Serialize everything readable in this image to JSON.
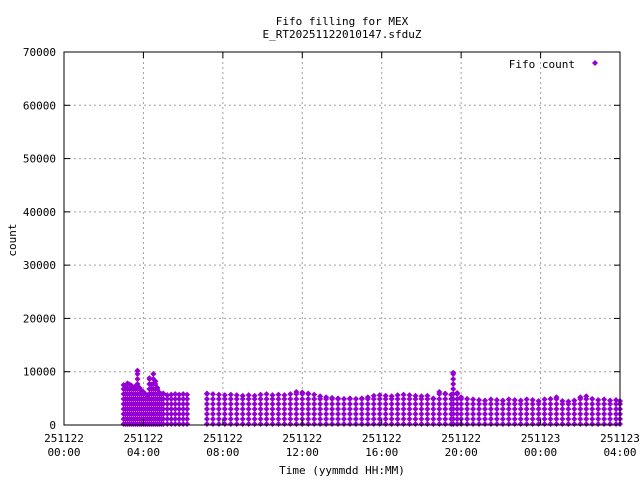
{
  "chart_data": {
    "type": "scatter",
    "title": "Fifo filling for MEX",
    "subtitle": "E_RT20251122010147.sfduZ",
    "xlabel": "Time (yymmdd HH:MM)",
    "ylabel": "count",
    "x_unit": "hours since 251122 00:00",
    "xlim": [
      0,
      28
    ],
    "ylim": [
      0,
      70000
    ],
    "y_ticks": [
      "0",
      "10000",
      "20000",
      "30000",
      "40000",
      "50000",
      "60000",
      "70000"
    ],
    "x_ticks": [
      {
        "date": "251122",
        "time": "00:00"
      },
      {
        "date": "251122",
        "time": "04:00"
      },
      {
        "date": "251122",
        "time": "08:00"
      },
      {
        "date": "251122",
        "time": "12:00"
      },
      {
        "date": "251122",
        "time": "16:00"
      },
      {
        "date": "251122",
        "time": "20:00"
      },
      {
        "date": "251123",
        "time": "00:00"
      },
      {
        "date": "251123",
        "time": "04:00"
      }
    ],
    "grid": true,
    "legend_position": "top-right",
    "colors": {
      "series": "#9400d3"
    },
    "series": [
      {
        "name": "Fifo count",
        "description": "Sampled upper envelope of fifo count; points are dense vertical bands from 0 up to these values",
        "points": [
          [
            3.0,
            7500
          ],
          [
            3.1,
            7200
          ],
          [
            3.2,
            7800
          ],
          [
            3.3,
            7600
          ],
          [
            3.4,
            7400
          ],
          [
            3.5,
            7000
          ],
          [
            3.6,
            7300
          ],
          [
            3.7,
            10200
          ],
          [
            3.8,
            7000
          ],
          [
            3.9,
            6500
          ],
          [
            4.0,
            6200
          ],
          [
            4.1,
            5800
          ],
          [
            4.2,
            5600
          ],
          [
            4.3,
            8800
          ],
          [
            4.4,
            7600
          ],
          [
            4.5,
            9600
          ],
          [
            4.6,
            8200
          ],
          [
            4.7,
            7000
          ],
          [
            4.8,
            6100
          ],
          [
            4.9,
            5800
          ],
          [
            5.0,
            5900
          ],
          [
            5.2,
            5600
          ],
          [
            5.4,
            5700
          ],
          [
            5.6,
            5800
          ],
          [
            5.8,
            5700
          ],
          [
            6.0,
            5800
          ],
          [
            6.2,
            5700
          ],
          [
            7.2,
            5900
          ],
          [
            7.5,
            5800
          ],
          [
            7.8,
            5700
          ],
          [
            8.1,
            5600
          ],
          [
            8.4,
            5700
          ],
          [
            8.7,
            5600
          ],
          [
            9.0,
            5500
          ],
          [
            9.3,
            5600
          ],
          [
            9.6,
            5500
          ],
          [
            9.9,
            5700
          ],
          [
            10.2,
            5800
          ],
          [
            10.5,
            5600
          ],
          [
            10.8,
            5700
          ],
          [
            11.1,
            5600
          ],
          [
            11.4,
            5800
          ],
          [
            11.7,
            6200
          ],
          [
            12.0,
            6100
          ],
          [
            12.3,
            5900
          ],
          [
            12.6,
            5700
          ],
          [
            12.9,
            5400
          ],
          [
            13.2,
            5200
          ],
          [
            13.5,
            5100
          ],
          [
            13.8,
            5000
          ],
          [
            14.1,
            4900
          ],
          [
            14.4,
            5000
          ],
          [
            14.7,
            4900
          ],
          [
            15.0,
            5000
          ],
          [
            15.3,
            5200
          ],
          [
            15.6,
            5500
          ],
          [
            15.9,
            5600
          ],
          [
            16.2,
            5500
          ],
          [
            16.5,
            5400
          ],
          [
            16.8,
            5600
          ],
          [
            17.1,
            5700
          ],
          [
            17.4,
            5600
          ],
          [
            17.7,
            5500
          ],
          [
            18.0,
            5400
          ],
          [
            18.3,
            5500
          ],
          [
            18.6,
            5000
          ],
          [
            18.9,
            6200
          ],
          [
            19.2,
            5900
          ],
          [
            19.5,
            5700
          ],
          [
            19.6,
            9800
          ],
          [
            19.8,
            6000
          ],
          [
            20.0,
            5200
          ],
          [
            20.3,
            4900
          ],
          [
            20.6,
            4800
          ],
          [
            20.9,
            4700
          ],
          [
            21.2,
            4600
          ],
          [
            21.5,
            4800
          ],
          [
            21.8,
            4700
          ],
          [
            22.1,
            4600
          ],
          [
            22.4,
            4800
          ],
          [
            22.7,
            4700
          ],
          [
            23.0,
            4600
          ],
          [
            23.3,
            4800
          ],
          [
            23.6,
            4700
          ],
          [
            23.9,
            4500
          ],
          [
            24.2,
            4800
          ],
          [
            24.5,
            4900
          ],
          [
            24.8,
            5200
          ],
          [
            25.1,
            4500
          ],
          [
            25.4,
            4400
          ],
          [
            25.7,
            4600
          ],
          [
            26.0,
            5200
          ],
          [
            26.3,
            5400
          ],
          [
            26.6,
            4900
          ],
          [
            26.9,
            4700
          ],
          [
            27.2,
            4800
          ],
          [
            27.5,
            4600
          ],
          [
            27.8,
            4700
          ],
          [
            28.0,
            4500
          ]
        ]
      }
    ]
  }
}
